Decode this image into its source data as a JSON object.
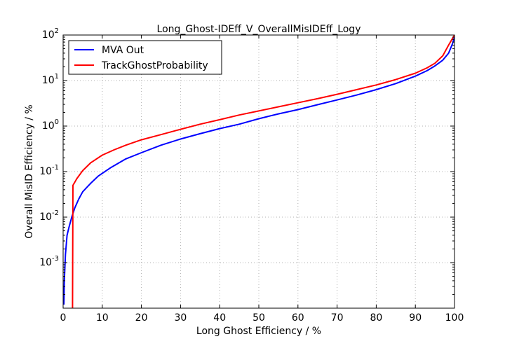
{
  "chart_data": {
    "type": "line",
    "title": "Long_Ghost-IDEff_V_OverallMisIDEff_Logy",
    "xlabel": "Long Ghost Efficiency / %",
    "ylabel": "Overall MisID Efficiency / %",
    "xlim": [
      0,
      100
    ],
    "ylim": [
      0.0001,
      100
    ],
    "yscale": "log",
    "grid": true,
    "legend_position": "top-left",
    "x_ticks": [
      "0",
      "10",
      "20",
      "30",
      "40",
      "50",
      "60",
      "70",
      "80",
      "90",
      "100"
    ],
    "x_tick_values": [
      0,
      10,
      20,
      30,
      40,
      50,
      60,
      70,
      80,
      90,
      100
    ],
    "y_ticks": [
      {
        "base": "10",
        "exp": "-3",
        "value": 0.001
      },
      {
        "base": "10",
        "exp": "-2",
        "value": 0.01
      },
      {
        "base": "10",
        "exp": "-1",
        "value": 0.1
      },
      {
        "base": "10",
        "exp": "0",
        "value": 1
      },
      {
        "base": "10",
        "exp": "1",
        "value": 10
      },
      {
        "base": "10",
        "exp": "2",
        "value": 100
      }
    ],
    "series": [
      {
        "name": "MVA Out",
        "color": "#0000ff",
        "points": [
          [
            0.2,
            0.00012
          ],
          [
            0.3,
            0.0004
          ],
          [
            0.6,
            0.0015
          ],
          [
            1.0,
            0.004
          ],
          [
            1.5,
            0.006
          ],
          [
            2.2,
            0.01
          ],
          [
            3.0,
            0.016
          ],
          [
            4.0,
            0.025
          ],
          [
            5.0,
            0.036
          ],
          [
            7.0,
            0.055
          ],
          [
            9.0,
            0.08
          ],
          [
            12.0,
            0.12
          ],
          [
            16.0,
            0.19
          ],
          [
            20.0,
            0.26
          ],
          [
            25.0,
            0.38
          ],
          [
            30.0,
            0.52
          ],
          [
            35.0,
            0.68
          ],
          [
            40.0,
            0.88
          ],
          [
            45.0,
            1.1
          ],
          [
            50.0,
            1.45
          ],
          [
            55.0,
            1.85
          ],
          [
            60.0,
            2.3
          ],
          [
            65.0,
            2.95
          ],
          [
            70.0,
            3.75
          ],
          [
            75.0,
            4.8
          ],
          [
            80.0,
            6.3
          ],
          [
            85.0,
            8.6
          ],
          [
            90.0,
            12.5
          ],
          [
            93.0,
            16.5
          ],
          [
            95.0,
            21.0
          ],
          [
            97.0,
            28.0
          ],
          [
            98.5,
            40.0
          ],
          [
            99.5,
            65.0
          ],
          [
            100.0,
            90.0
          ]
        ]
      },
      {
        "name": "TrackGhostProbability",
        "color": "#ff0000",
        "points": [
          [
            2.4,
            0.0001
          ],
          [
            2.5,
            0.05
          ],
          [
            3.5,
            0.07
          ],
          [
            5.0,
            0.105
          ],
          [
            7.0,
            0.155
          ],
          [
            10.0,
            0.23
          ],
          [
            13.0,
            0.3
          ],
          [
            16.0,
            0.38
          ],
          [
            20.0,
            0.5
          ],
          [
            25.0,
            0.65
          ],
          [
            30.0,
            0.85
          ],
          [
            35.0,
            1.1
          ],
          [
            40.0,
            1.38
          ],
          [
            45.0,
            1.75
          ],
          [
            50.0,
            2.15
          ],
          [
            55.0,
            2.65
          ],
          [
            60.0,
            3.25
          ],
          [
            65.0,
            4.0
          ],
          [
            70.0,
            5.0
          ],
          [
            75.0,
            6.3
          ],
          [
            80.0,
            8.0
          ],
          [
            85.0,
            10.5
          ],
          [
            90.0,
            14.5
          ],
          [
            93.0,
            19.0
          ],
          [
            95.0,
            24.0
          ],
          [
            97.0,
            35.0
          ],
          [
            98.5,
            60.0
          ],
          [
            100.0,
            100.0
          ]
        ]
      }
    ]
  }
}
